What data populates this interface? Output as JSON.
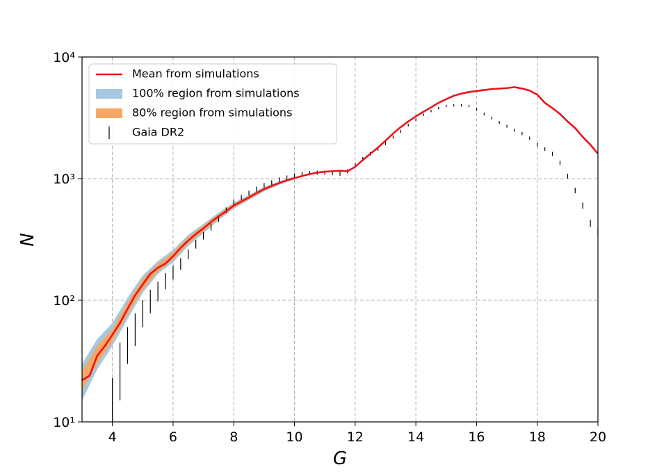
{
  "chart_data": {
    "type": "line",
    "xlabel": "G",
    "ylabel": "N",
    "xlim": [
      3,
      20
    ],
    "xticks": [
      4,
      6,
      8,
      10,
      12,
      14,
      16,
      18,
      20
    ],
    "ylim": [
      10,
      10000
    ],
    "log_y": true,
    "yticks": [
      {
        "value": 10,
        "label": "10¹"
      },
      {
        "value": 100,
        "label": "10²"
      },
      {
        "value": 1000,
        "label": "10³"
      },
      {
        "value": 10000,
        "label": "10⁴"
      }
    ],
    "grid": true,
    "legend": "upper left",
    "series": [
      {
        "name": "Mean from simulations",
        "kind": "line",
        "color": "#e8141b",
        "x": [
          3,
          3.25,
          3.5,
          3.75,
          4,
          4.25,
          4.5,
          4.75,
          5,
          5.25,
          5.5,
          5.75,
          6,
          6.25,
          6.5,
          6.75,
          7,
          7.25,
          7.5,
          7.75,
          8,
          8.25,
          8.5,
          8.75,
          9,
          9.25,
          9.5,
          9.75,
          10,
          10.25,
          10.5,
          10.75,
          11,
          11.25,
          11.5,
          11.75,
          12,
          12.25,
          12.5,
          12.75,
          13,
          13.25,
          13.5,
          13.75,
          14,
          14.25,
          14.5,
          14.75,
          15,
          15.25,
          15.5,
          15.75,
          16,
          16.25,
          16.5,
          16.75,
          17,
          17.25,
          17.5,
          17.75,
          18,
          18.25,
          18.5,
          18.75,
          19,
          19.25,
          19.5,
          19.75,
          20
        ],
        "values": [
          22,
          24,
          35,
          42,
          52,
          65,
          85,
          110,
          135,
          165,
          185,
          200,
          230,
          270,
          310,
          350,
          390,
          440,
          490,
          540,
          600,
          650,
          700,
          760,
          820,
          870,
          920,
          970,
          1010,
          1050,
          1090,
          1120,
          1140,
          1150,
          1160,
          1150,
          1250,
          1420,
          1600,
          1800,
          2050,
          2350,
          2650,
          2950,
          3250,
          3550,
          3850,
          4200,
          4500,
          4800,
          5000,
          5150,
          5250,
          5350,
          5450,
          5500,
          5550,
          5650,
          5500,
          5300,
          4900,
          4200,
          3800,
          3400,
          2950,
          2600,
          2200,
          1900,
          1600
        ]
      },
      {
        "name": "100% region from simulations",
        "kind": "band",
        "color": "#a6c8e2",
        "x": [
          3,
          3.5,
          4,
          4.5,
          5,
          5.5,
          6,
          6.5,
          7,
          7.5,
          8,
          8.5,
          9,
          9.5,
          10
        ],
        "low": [
          15,
          27,
          42,
          70,
          115,
          165,
          205,
          280,
          355,
          455,
          565,
          665,
          785,
          890,
          985
        ],
        "high": [
          30,
          48,
          65,
          105,
          160,
          210,
          260,
          345,
          425,
          525,
          635,
          735,
          855,
          950,
          1040
        ]
      },
      {
        "name": "80% region from simulations",
        "kind": "band",
        "color": "#f5a865",
        "x": [
          3,
          3.5,
          4,
          4.5,
          5,
          5.5,
          6,
          6.5,
          7,
          7.5,
          8,
          8.5,
          9,
          9.5,
          10
        ],
        "low": [
          18,
          30,
          46,
          76,
          122,
          172,
          215,
          292,
          368,
          468,
          578,
          678,
          798,
          902,
          995
        ],
        "high": [
          26,
          42,
          58,
          96,
          150,
          200,
          248,
          330,
          412,
          512,
          622,
          722,
          842,
          940,
          1028
        ]
      },
      {
        "name": "Gaia DR2",
        "kind": "errorbar",
        "color": "#000000",
        "x": [
          4,
          4.25,
          4.5,
          4.75,
          5,
          5.25,
          5.5,
          5.75,
          6,
          6.25,
          6.5,
          6.75,
          7,
          7.25,
          7.5,
          7.75,
          8,
          8.25,
          8.5,
          8.75,
          9,
          9.25,
          9.5,
          9.75,
          10,
          10.25,
          10.5,
          10.75,
          11,
          11.25,
          11.5,
          11.75,
          12,
          12.25,
          12.5,
          12.75,
          13,
          13.25,
          13.5,
          13.75,
          14,
          14.25,
          14.5,
          14.75,
          15,
          15.25,
          15.5,
          15.75,
          16,
          16.25,
          16.5,
          16.75,
          17,
          17.25,
          17.5,
          17.75,
          18,
          18.25,
          18.5,
          18.75,
          19,
          19.25,
          19.5,
          19.75,
          20
        ],
        "values": [
          16,
          30,
          45,
          60,
          80,
          100,
          120,
          145,
          170,
          200,
          240,
          290,
          340,
          400,
          470,
          550,
          640,
          700,
          760,
          820,
          880,
          930,
          980,
          1020,
          1060,
          1090,
          1110,
          1120,
          1120,
          1110,
          1100,
          1150,
          1300,
          1450,
          1600,
          1750,
          1950,
          2200,
          2450,
          2750,
          3050,
          3350,
          3600,
          3800,
          3950,
          4000,
          4000,
          3950,
          3700,
          3400,
          3150,
          2900,
          2700,
          2500,
          2350,
          2150,
          1900,
          1750,
          1600,
          1350,
          1050,
          800,
          600,
          430,
          360
        ],
        "errors": [
          7,
          15,
          15,
          18,
          20,
          22,
          22,
          22,
          22,
          22,
          22,
          24,
          24,
          26,
          28,
          30,
          32,
          34,
          36,
          38,
          40,
          40,
          42,
          42,
          44,
          44,
          44,
          44,
          44,
          44,
          44,
          46,
          50,
          54,
          56,
          60,
          62,
          66,
          70,
          74,
          78,
          82,
          84,
          88,
          90,
          90,
          90,
          90,
          86,
          82,
          80,
          76,
          74,
          72,
          70,
          66,
          62,
          60,
          58,
          54,
          48,
          42,
          36,
          30,
          28
        ]
      }
    ]
  }
}
